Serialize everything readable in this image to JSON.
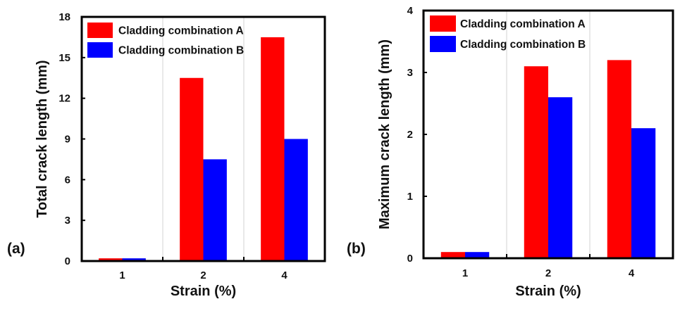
{
  "chart_data": [
    {
      "panel_label": "(a)",
      "type": "bar",
      "title": "",
      "xlabel": "Strain (%)",
      "ylabel": "Total crack length (mm)",
      "categories": [
        "1",
        "2",
        "4"
      ],
      "ylim": [
        0,
        18
      ],
      "yticks": [
        0,
        3,
        6,
        9,
        12,
        15,
        18
      ],
      "grid": "vertical separators between categories",
      "legend_position": "top-left",
      "series": [
        {
          "name": "Cladding combination A",
          "color": "#ff0000",
          "values": [
            0.2,
            13.5,
            16.5
          ]
        },
        {
          "name": "Cladding combination B",
          "color": "#0000ff",
          "values": [
            0.2,
            7.5,
            9.0
          ]
        }
      ]
    },
    {
      "panel_label": "(b)",
      "type": "bar",
      "title": "",
      "xlabel": "Strain (%)",
      "ylabel": "Maximum crack length (mm)",
      "categories": [
        "1",
        "2",
        "4"
      ],
      "ylim": [
        0,
        4
      ],
      "yticks": [
        0,
        1,
        2,
        3,
        4
      ],
      "grid": "vertical separators between categories",
      "legend_position": "top-left",
      "series": [
        {
          "name": "Cladding combination A",
          "color": "#ff0000",
          "values": [
            0.1,
            3.1,
            3.2
          ]
        },
        {
          "name": "Cladding combination B",
          "color": "#0000ff",
          "values": [
            0.1,
            2.6,
            2.1
          ]
        }
      ]
    }
  ]
}
